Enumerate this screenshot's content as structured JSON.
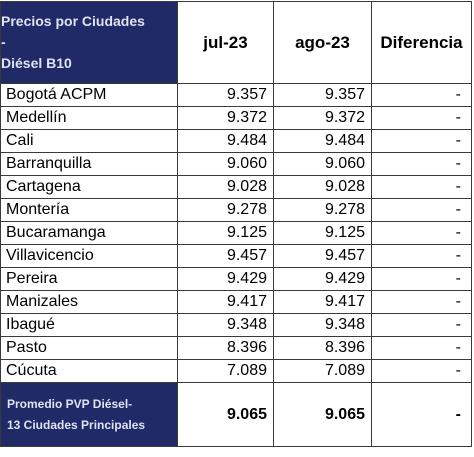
{
  "table": {
    "header": {
      "title_line1": "Precios por Ciudades",
      "title_line2": "-",
      "title_line3": "Diésel B10",
      "col_jul": "jul-23",
      "col_ago": "ago-23",
      "col_diff": "Diferencia"
    },
    "rows": [
      {
        "city": "Bogotá ACPM",
        "jul": "9.357",
        "ago": "9.357",
        "diff": "-"
      },
      {
        "city": "Medellín",
        "jul": "9.372",
        "ago": "9.372",
        "diff": "-"
      },
      {
        "city": "Cali",
        "jul": "9.484",
        "ago": "9.484",
        "diff": "-"
      },
      {
        "city": "Barranquilla",
        "jul": "9.060",
        "ago": "9.060",
        "diff": "-"
      },
      {
        "city": "Cartagena",
        "jul": "9.028",
        "ago": "9.028",
        "diff": "-"
      },
      {
        "city": "Montería",
        "jul": "9.278",
        "ago": "9.278",
        "diff": "-"
      },
      {
        "city": "Bucaramanga",
        "jul": "9.125",
        "ago": "9.125",
        "diff": "-"
      },
      {
        "city": "Villavicencio",
        "jul": "9.457",
        "ago": "9.457",
        "diff": "-"
      },
      {
        "city": "Pereira",
        "jul": "9.429",
        "ago": "9.429",
        "diff": "-"
      },
      {
        "city": "Manizales",
        "jul": "9.417",
        "ago": "9.417",
        "diff": "-"
      },
      {
        "city": "Ibagué",
        "jul": "9.348",
        "ago": "9.348",
        "diff": "-"
      },
      {
        "city": "Pasto",
        "jul": "8.396",
        "ago": "8.396",
        "diff": "-"
      },
      {
        "city": "Cúcuta",
        "jul": "7.089",
        "ago": "7.089",
        "diff": "-"
      }
    ],
    "footer": {
      "label_line1": "Promedio PVP Diésel-",
      "label_line2": "13 Ciudades Principales",
      "jul": "9.065",
      "ago": "9.065",
      "diff": "-"
    }
  },
  "colors": {
    "header_bg": "#1f2a66",
    "header_text": "#dfe3f2"
  }
}
